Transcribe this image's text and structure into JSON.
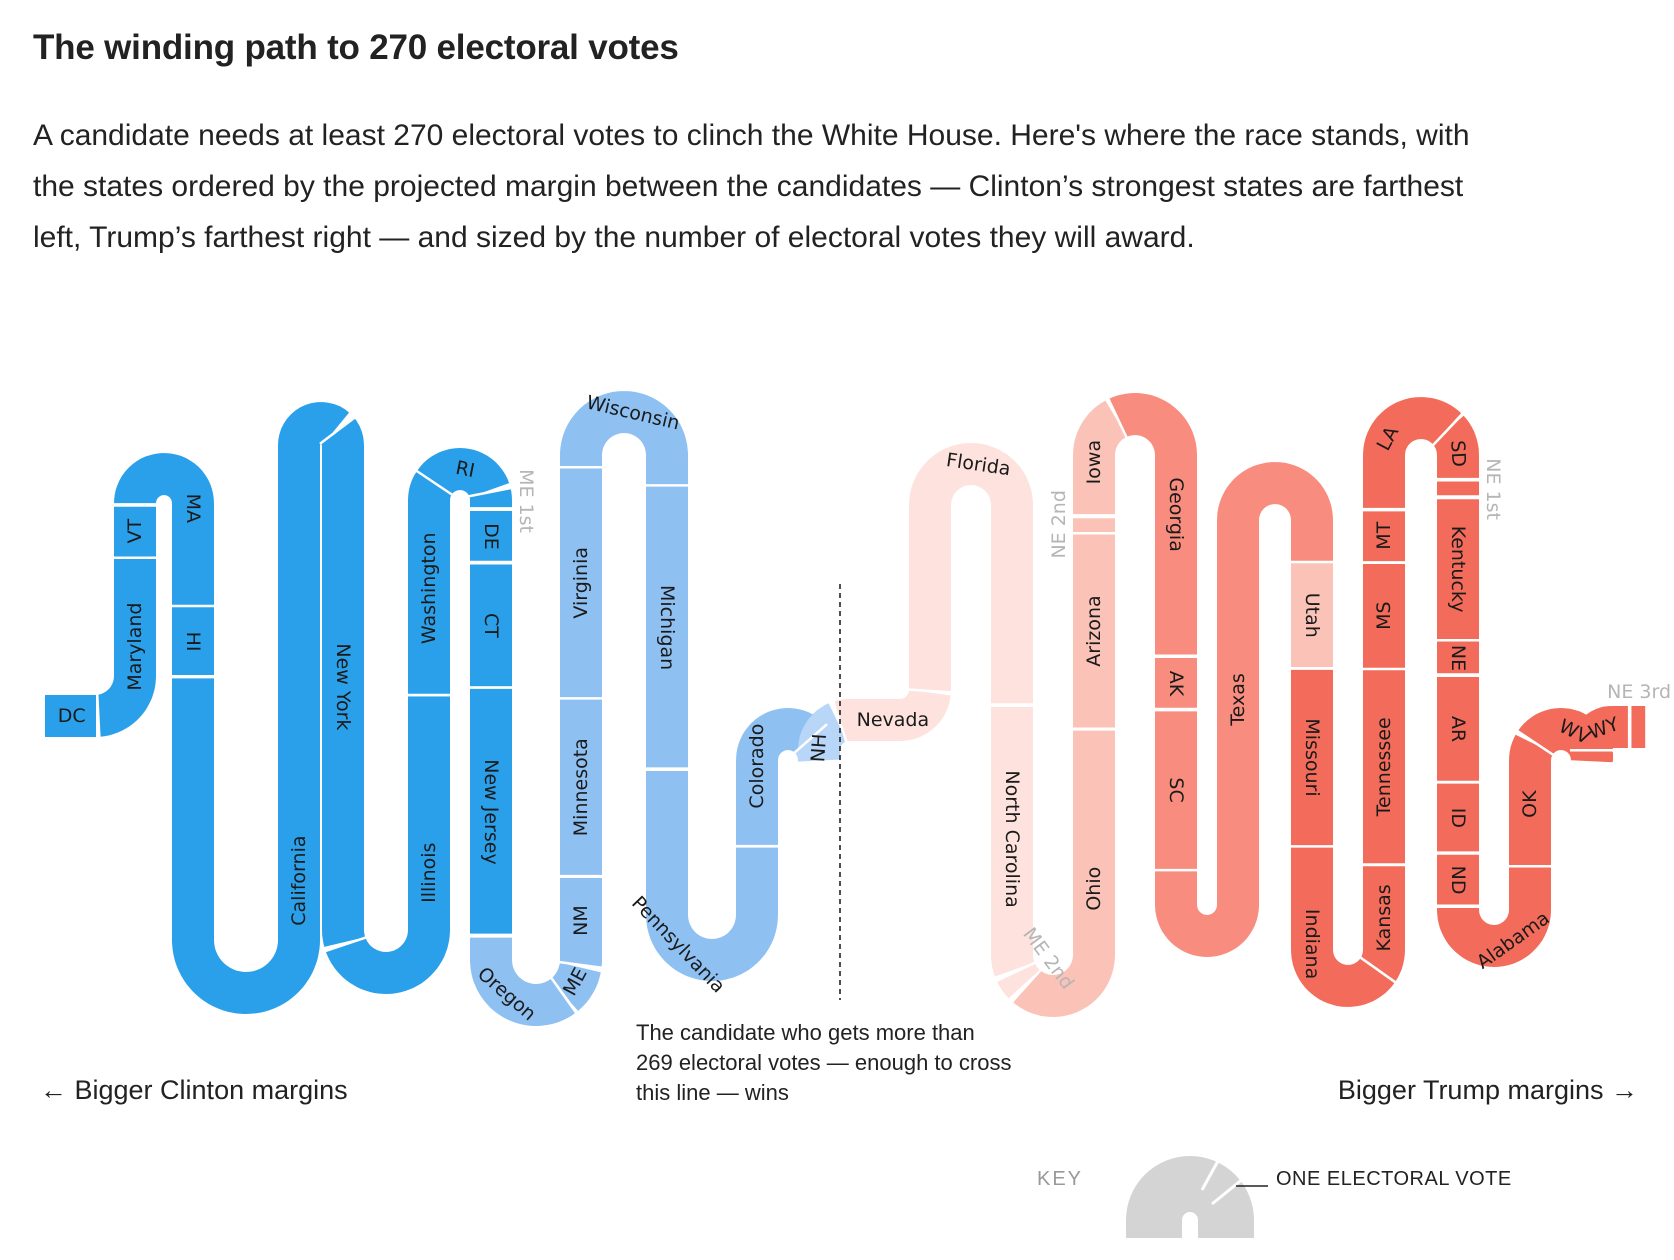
{
  "title": "The winding path to 270 electoral votes",
  "description": "A candidate needs at least 270 electoral votes to clinch the White House. Here's where the race stands, with the states ordered by the projected margin between the candidates — Clinton’s strongest states are farthest left, Trump’s farthest right — and sized by the number of electoral votes they will award.",
  "threshold_note": "The candidate who gets more than 269 electoral votes — enough to cross this line — wins",
  "left_label": "← Bigger Clinton margins",
  "right_label": "Bigger Trump margins →",
  "key": {
    "title": "KEY",
    "label": "ONE ELECTORAL VOTE"
  },
  "colors": {
    "solid_clinton": "#2ba0ea",
    "likely_clinton": "#8ec0f2",
    "lean_clinton": "#b7d6f8",
    "lean_trump": "#fde2dd",
    "tossup_trump": "#fbc3b8",
    "likely_trump": "#f88c7e",
    "solid_trump": "#f36c5b",
    "outside_label": "#b5b5b5",
    "key_gray": "#d4d4d4"
  },
  "chart_data": {
    "type": "ordered-snake",
    "order": "projected margin, strongest Clinton first",
    "size_by": "electoral votes",
    "threshold": 269,
    "states": [
      {
        "label": "DC",
        "ev": 3,
        "side": "clinton",
        "tier": "solid_clinton"
      },
      {
        "label": "Maryland",
        "ev": 10,
        "side": "clinton",
        "tier": "solid_clinton"
      },
      {
        "label": "VT",
        "ev": 3,
        "side": "clinton",
        "tier": "solid_clinton"
      },
      {
        "label": "MA",
        "ev": 11,
        "side": "clinton",
        "tier": "solid_clinton"
      },
      {
        "label": "HI",
        "ev": 4,
        "side": "clinton",
        "tier": "solid_clinton"
      },
      {
        "label": "California",
        "ev": 55,
        "side": "clinton",
        "tier": "solid_clinton"
      },
      {
        "label": "New York",
        "ev": 29,
        "side": "clinton",
        "tier": "solid_clinton"
      },
      {
        "label": "Illinois",
        "ev": 20,
        "side": "clinton",
        "tier": "solid_clinton"
      },
      {
        "label": "Washington",
        "ev": 12,
        "side": "clinton",
        "tier": "solid_clinton"
      },
      {
        "label": "RI",
        "ev": 4,
        "side": "clinton",
        "tier": "solid_clinton"
      },
      {
        "label": "ME 1st",
        "ev": 1,
        "side": "clinton",
        "tier": "solid_clinton"
      },
      {
        "label": "DE",
        "ev": 3,
        "side": "clinton",
        "tier": "solid_clinton"
      },
      {
        "label": "CT",
        "ev": 7,
        "side": "clinton",
        "tier": "solid_clinton"
      },
      {
        "label": "New Jersey",
        "ev": 14,
        "side": "clinton",
        "tier": "solid_clinton"
      },
      {
        "label": "Oregon",
        "ev": 7,
        "side": "clinton",
        "tier": "likely_clinton"
      },
      {
        "label": "ME",
        "ev": 2,
        "side": "clinton",
        "tier": "likely_clinton"
      },
      {
        "label": "NM",
        "ev": 5,
        "side": "clinton",
        "tier": "likely_clinton"
      },
      {
        "label": "Minnesota",
        "ev": 10,
        "side": "clinton",
        "tier": "likely_clinton"
      },
      {
        "label": "Virginia",
        "ev": 13,
        "side": "clinton",
        "tier": "likely_clinton"
      },
      {
        "label": "Wisconsin",
        "ev": 10,
        "side": "clinton",
        "tier": "likely_clinton"
      },
      {
        "label": "Michigan",
        "ev": 16,
        "side": "clinton",
        "tier": "likely_clinton"
      },
      {
        "label": "Pennsylvania",
        "ev": 20,
        "side": "clinton",
        "tier": "likely_clinton"
      },
      {
        "label": "Colorado",
        "ev": 9,
        "side": "clinton",
        "tier": "likely_clinton"
      },
      {
        "label": "NH",
        "ev": 4,
        "side": "clinton",
        "tier": "lean_clinton"
      },
      {
        "label": "Nevada",
        "ev": 6,
        "side": "trump",
        "tier": "lean_trump"
      },
      {
        "label": "Florida",
        "ev": 29,
        "side": "trump",
        "tier": "lean_trump"
      },
      {
        "label": "North Carolina",
        "ev": 15,
        "side": "trump",
        "tier": "lean_trump"
      },
      {
        "label": "ME 2nd",
        "ev": 1,
        "side": "trump",
        "tier": "lean_trump"
      },
      {
        "label": "Ohio",
        "ev": 18,
        "side": "trump",
        "tier": "tossup_trump"
      },
      {
        "label": "Arizona",
        "ev": 11,
        "side": "trump",
        "tier": "tossup_trump"
      },
      {
        "label": "NE 2nd",
        "ev": 1,
        "side": "trump",
        "tier": "tossup_trump"
      },
      {
        "label": "Iowa",
        "ev": 6,
        "side": "trump",
        "tier": "tossup_trump"
      },
      {
        "label": "Georgia",
        "ev": 16,
        "side": "trump",
        "tier": "likely_trump"
      },
      {
        "label": "AK",
        "ev": 3,
        "side": "trump",
        "tier": "likely_trump"
      },
      {
        "label": "SC",
        "ev": 9,
        "side": "trump",
        "tier": "likely_trump"
      },
      {
        "label": "Texas",
        "ev": 38,
        "side": "trump",
        "tier": "likely_trump"
      },
      {
        "label": "Utah",
        "ev": 6,
        "side": "trump",
        "tier": "tossup_trump"
      },
      {
        "label": "Missouri",
        "ev": 10,
        "side": "trump",
        "tier": "solid_trump"
      },
      {
        "label": "Indiana",
        "ev": 11,
        "side": "trump",
        "tier": "solid_trump"
      },
      {
        "label": "Kansas",
        "ev": 6,
        "side": "trump",
        "tier": "solid_trump"
      },
      {
        "label": "Tennessee",
        "ev": 11,
        "side": "trump",
        "tier": "solid_trump"
      },
      {
        "label": "MS",
        "ev": 6,
        "side": "trump",
        "tier": "solid_trump"
      },
      {
        "label": "MT",
        "ev": 3,
        "side": "trump",
        "tier": "solid_trump"
      },
      {
        "label": "LA",
        "ev": 8,
        "side": "trump",
        "tier": "solid_trump"
      },
      {
        "label": "SD",
        "ev": 3,
        "side": "trump",
        "tier": "solid_trump"
      },
      {
        "label": "NE 1st",
        "ev": 1,
        "side": "trump",
        "tier": "solid_trump"
      },
      {
        "label": "Kentucky",
        "ev": 8,
        "side": "trump",
        "tier": "solid_trump"
      },
      {
        "label": "NE",
        "ev": 2,
        "side": "trump",
        "tier": "solid_trump"
      },
      {
        "label": "AR",
        "ev": 6,
        "side": "trump",
        "tier": "solid_trump"
      },
      {
        "label": "ID",
        "ev": 4,
        "side": "trump",
        "tier": "solid_trump"
      },
      {
        "label": "ND",
        "ev": 3,
        "side": "trump",
        "tier": "solid_trump"
      },
      {
        "label": "Alabama",
        "ev": 9,
        "side": "trump",
        "tier": "solid_trump"
      },
      {
        "label": "OK",
        "ev": 7,
        "side": "trump",
        "tier": "solid_trump"
      },
      {
        "label": "WV",
        "ev": 5,
        "side": "trump",
        "tier": "solid_trump"
      },
      {
        "label": "WY",
        "ev": 3,
        "side": "trump",
        "tier": "solid_trump"
      },
      {
        "label": "NE 3rd",
        "ev": 1,
        "side": "trump",
        "tier": "solid_trump"
      }
    ]
  }
}
